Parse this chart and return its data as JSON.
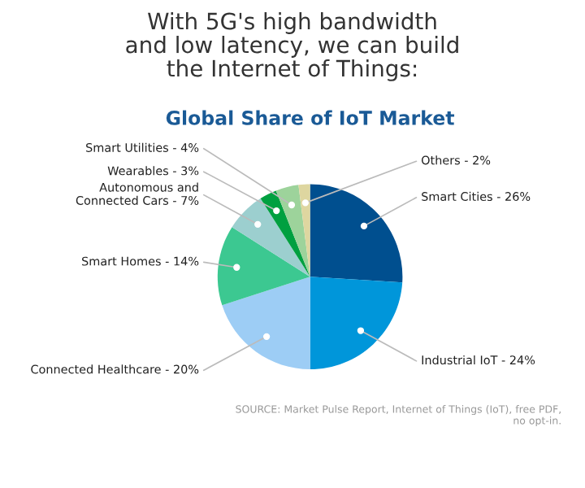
{
  "chart_data": {
    "type": "pie",
    "title": "With 5G's high bandwidth\nand low latency, we can build\nthe Internet of Things:",
    "subtitle": "Global Share of IoT Market",
    "categories": [
      "Smart Cities - 26%",
      "Industrial IoT - 24%",
      "Connected Healthcare - 20%",
      "Smart Homes - 14%",
      "Autonomous and\nConnected Cars - 7%",
      "Wearables - 3%",
      "Smart Utilities - 4%",
      "Others - 2%"
    ],
    "values": [
      26,
      24,
      20,
      14,
      7,
      3,
      4,
      2
    ],
    "colors": [
      "#004f8f",
      "#0096da",
      "#9dcdf5",
      "#3cc891",
      "#9ccfcf",
      "#00a040",
      "#9dd39b",
      "#ded6a0"
    ],
    "annotations": [
      "SOURCE: Market Pulse Report, Internet of Things (IoT), free PDF,\nno opt-in."
    ]
  }
}
